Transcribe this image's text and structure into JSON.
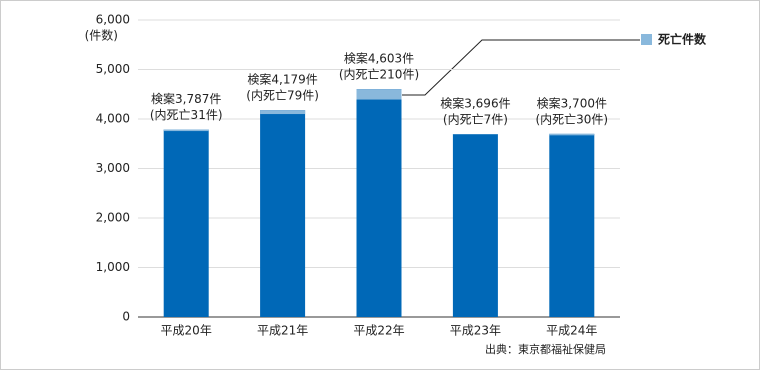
{
  "chart_data": {
    "type": "bar",
    "categories": [
      "平成20年",
      "平成21年",
      "平成22年",
      "平成23年",
      "平成24年"
    ],
    "values": [
      3787,
      4179,
      4603,
      3696,
      3700
    ],
    "value_labels": [
      "検案3,787件",
      "検案4,179件",
      "検案4,603件",
      "検案3,696件",
      "検案3,700件"
    ],
    "color": "#0068b7",
    "series": [
      {
        "name": "死亡件数",
        "color": "#89b8dc",
        "values": [
          31,
          79,
          210,
          7,
          30
        ],
        "value_labels": [
          "(内死亡31件)",
          "(内死亡79件)",
          "(内死亡210件)",
          "(内死亡7件)",
          "(内死亡30件)"
        ]
      }
    ],
    "ylabel": "(件数)",
    "ylim": [
      0,
      6000
    ],
    "yticks": [
      0,
      {
        "value": 1000,
        "label": "1,000"
      },
      {
        "value": 2000,
        "label": "2,000"
      },
      {
        "value": 3000,
        "label": "3,000"
      },
      {
        "value": 4000,
        "label": "4,000"
      },
      {
        "value": 5000,
        "label": "5,000"
      },
      {
        "value": 6000,
        "label": "6,000"
      }
    ],
    "grid": true,
    "legend": "top-right",
    "source": "出典：東京都福祉保健局"
  }
}
